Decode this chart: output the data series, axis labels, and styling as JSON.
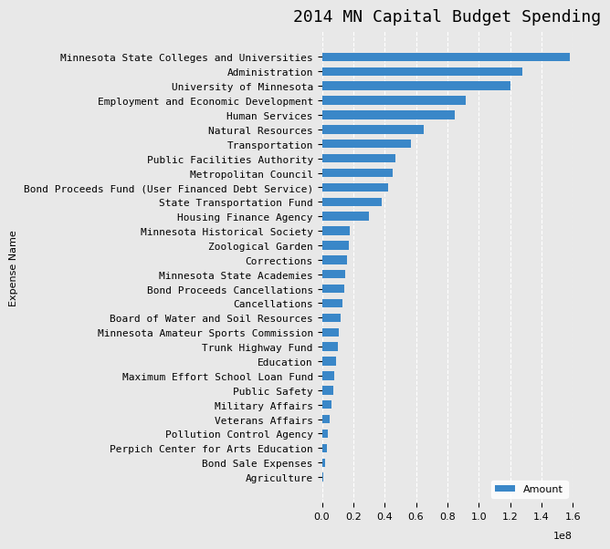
{
  "title": "2014 MN Capital Budget Spending",
  "xlabel": "",
  "ylabel": "Expense Name",
  "categories": [
    "Agriculture",
    "Bond Sale Expenses",
    "Perpich Center for Arts Education",
    "Pollution Control Agency",
    "Veterans Affairs",
    "Military Affairs",
    "Public Safety",
    "Maximum Effort School Loan Fund",
    "Education",
    "Trunk Highway Fund",
    "Minnesota Amateur Sports Commission",
    "Board of Water and Soil Resources",
    "Cancellations",
    "Bond Proceeds Cancellations",
    "Minnesota State Academies",
    "Corrections",
    "Zoological Garden",
    "Minnesota Historical Society",
    "Housing Finance Agency",
    "State Transportation Fund",
    "Bond Proceeds Fund (User Financed Debt Service)",
    "Metropolitan Council",
    "Public Facilities Authority",
    "Transportation",
    "Natural Resources",
    "Human Services",
    "Employment and Economic Development",
    "University of Minnesota",
    "Administration",
    "Minnesota State Colleges and Universities"
  ],
  "values": [
    1000000,
    2000000,
    3000000,
    4000000,
    5000000,
    6000000,
    7000000,
    8000000,
    9000000,
    10000000,
    11000000,
    12000000,
    13000000,
    14000000,
    15000000,
    16000000,
    17000000,
    18000000,
    30000000,
    38000000,
    42000000,
    45000000,
    47000000,
    57000000,
    65000000,
    85000000,
    92000000,
    120000000,
    128000000,
    158000000
  ],
  "bar_color": "#3a87c8",
  "background_color": "#e8e8e8",
  "grid_color": "#ffffff",
  "title_fontsize": 13,
  "label_fontsize": 8,
  "tick_fontsize": 8,
  "xlim": [
    0,
    160000000.0
  ]
}
